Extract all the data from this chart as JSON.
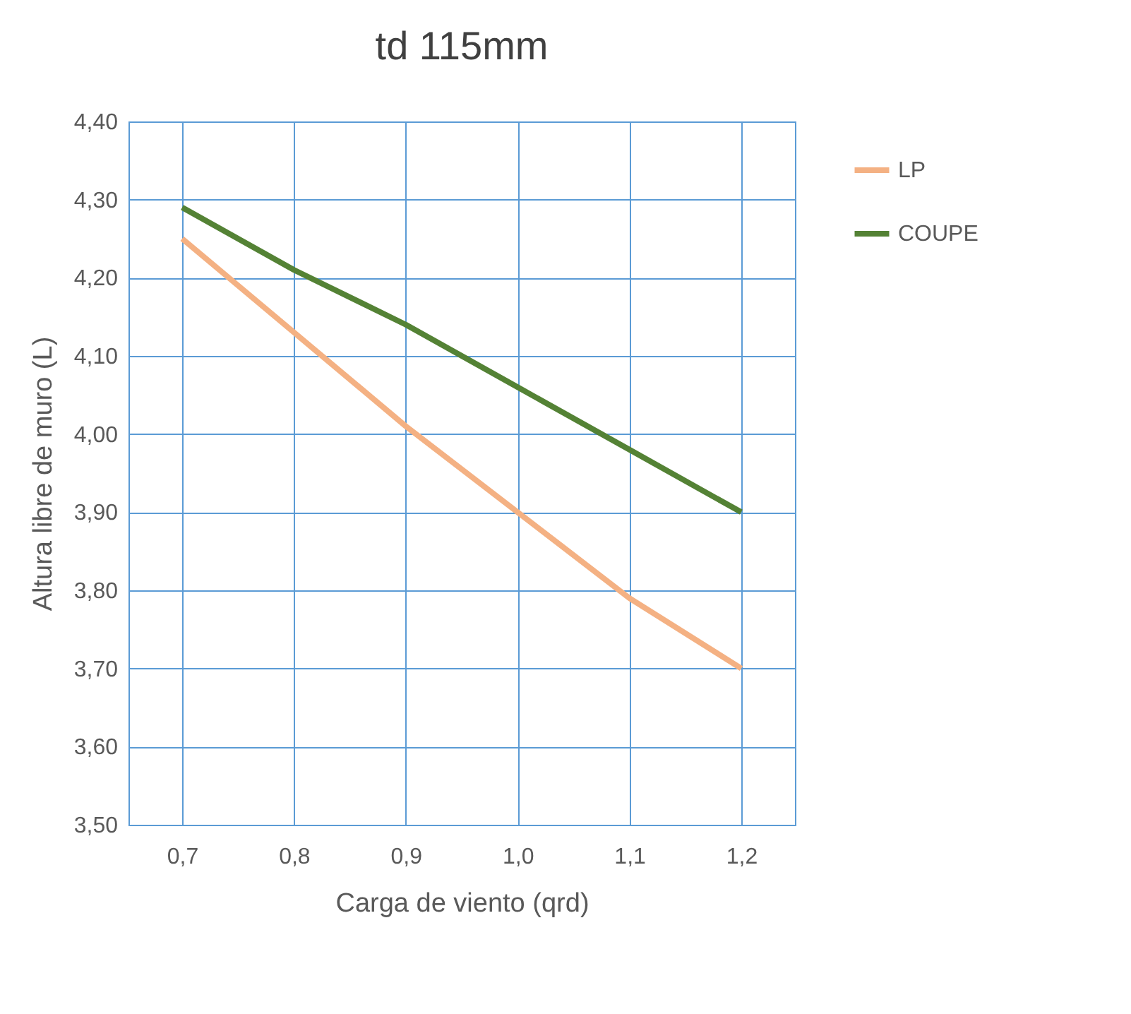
{
  "chart_data": {
    "type": "line",
    "title": "td 115mm",
    "xlabel": "Carga de viento (qrd)",
    "ylabel": "Altura libre de muro (L)",
    "categories": [
      "0,7",
      "0,8",
      "0,9",
      "1,0",
      "1,1",
      "1,2"
    ],
    "series": [
      {
        "name": "LP",
        "color": "#f4b183",
        "values": [
          4.25,
          4.13,
          4.01,
          3.9,
          3.79,
          3.7
        ]
      },
      {
        "name": "COUPE",
        "color": "#548235",
        "values": [
          4.29,
          4.21,
          4.14,
          4.06,
          3.98,
          3.9
        ]
      }
    ],
    "ylim": [
      3.5,
      4.4
    ],
    "yticks": [
      {
        "value": 3.5,
        "label": "3,50"
      },
      {
        "value": 3.6,
        "label": "3,60"
      },
      {
        "value": 3.7,
        "label": "3,70"
      },
      {
        "value": 3.8,
        "label": "3,80"
      },
      {
        "value": 3.9,
        "label": "3,90"
      },
      {
        "value": 4.0,
        "label": "4,00"
      },
      {
        "value": 4.1,
        "label": "4,10"
      },
      {
        "value": 4.2,
        "label": "4,20"
      },
      {
        "value": 4.3,
        "label": "4,30"
      },
      {
        "value": 4.4,
        "label": "4,40"
      }
    ],
    "grid": true,
    "legend": "right",
    "marker": "none",
    "line_style": "solid"
  }
}
